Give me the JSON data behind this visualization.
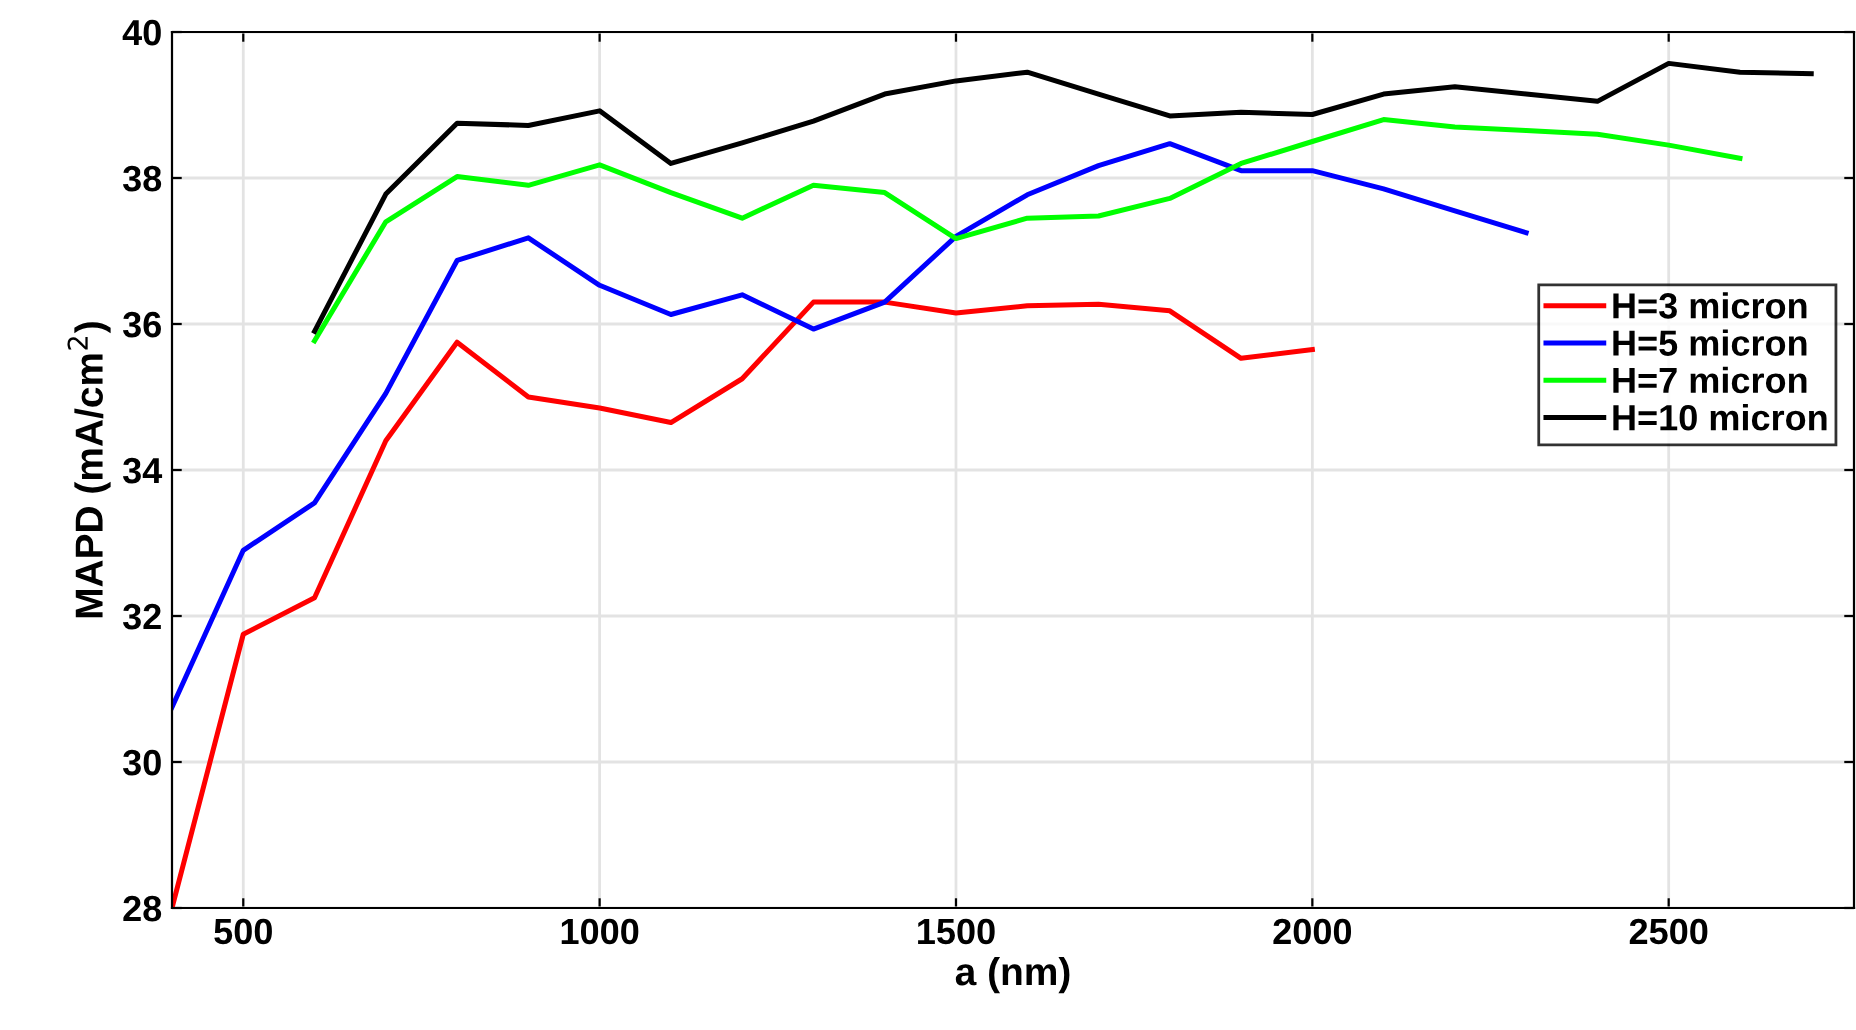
{
  "chart_data": {
    "type": "line",
    "xlabel": "a (nm)",
    "ylabel": "MAPD (mA/cm$^{2}$)",
    "xlim": [
      400,
      2760
    ],
    "xticks": [
      500,
      1000,
      1500,
      2000,
      2500
    ],
    "ylim": [
      28,
      40
    ],
    "yticks": [
      28,
      30,
      32,
      34,
      36,
      38,
      40
    ],
    "grid": true,
    "legend": "right",
    "line_style": "solid",
    "series": [
      {
        "name": "H=3 micron",
        "color": "#ff0000",
        "x": [
          400,
          500,
          600,
          700,
          800,
          900,
          1000,
          1100,
          1200,
          1300,
          1400,
          1500,
          1600,
          1700,
          1800,
          1900,
          2000
        ],
        "values": [
          28.0,
          31.75,
          32.25,
          34.4,
          35.75,
          35.0,
          34.85,
          34.65,
          35.25,
          36.3,
          36.3,
          36.15,
          36.25,
          36.27,
          36.18,
          35.53,
          35.65
        ]
      },
      {
        "name": "H=5 micron",
        "color": "#0000ff",
        "x": [
          400,
          500,
          600,
          700,
          800,
          900,
          1000,
          1100,
          1200,
          1300,
          1400,
          1500,
          1600,
          1700,
          1800,
          1900,
          2000,
          2100,
          2200,
          2300
        ],
        "values": [
          30.75,
          32.9,
          33.55,
          35.05,
          36.87,
          37.18,
          36.53,
          36.13,
          36.4,
          35.93,
          36.3,
          37.2,
          37.77,
          38.17,
          38.47,
          38.1,
          38.1,
          37.85,
          37.55,
          37.25
        ]
      },
      {
        "name": "H=7 micron",
        "color": "#00ff00",
        "x": [
          600,
          700,
          800,
          900,
          1000,
          1100,
          1200,
          1300,
          1400,
          1500,
          1600,
          1700,
          1800,
          1900,
          2000,
          2100,
          2200,
          2300,
          2400,
          2500,
          2600
        ],
        "values": [
          35.77,
          37.4,
          38.02,
          37.9,
          38.18,
          37.8,
          37.45,
          37.9,
          37.8,
          37.17,
          37.45,
          37.48,
          37.72,
          38.2,
          38.5,
          38.8,
          38.7,
          38.65,
          38.6,
          38.45,
          38.27
        ]
      },
      {
        "name": "H=10 micron",
        "color": "#000000",
        "x": [
          600,
          700,
          800,
          900,
          1000,
          1100,
          1200,
          1300,
          1400,
          1500,
          1600,
          1700,
          1800,
          1900,
          2000,
          2100,
          2200,
          2300,
          2400,
          2500,
          2600,
          2700
        ],
        "values": [
          35.9,
          37.78,
          38.75,
          38.72,
          38.92,
          38.2,
          38.48,
          38.78,
          39.15,
          39.33,
          39.45,
          39.15,
          38.85,
          38.9,
          38.87,
          39.15,
          39.25,
          39.15,
          39.05,
          39.57,
          39.45,
          39.43
        ]
      }
    ]
  }
}
